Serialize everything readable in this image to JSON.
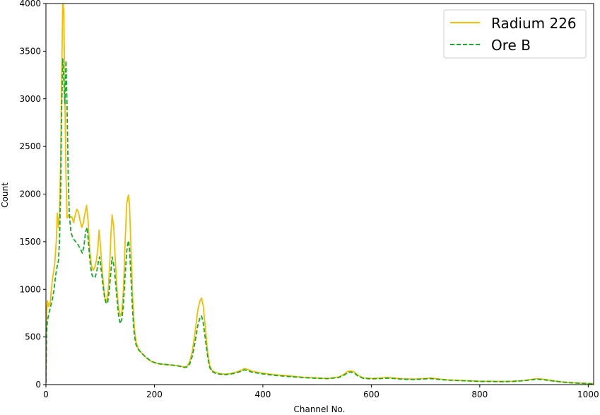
{
  "chart_data": {
    "type": "line",
    "title": "",
    "xlabel": "Channel No.",
    "ylabel": "Count",
    "xlim": [
      0,
      1010
    ],
    "ylim": [
      0,
      4000
    ],
    "xticks": [
      0,
      200,
      400,
      600,
      800,
      1000
    ],
    "yticks": [
      0,
      500,
      1000,
      1500,
      2000,
      2500,
      3000,
      3500,
      4000
    ],
    "grid": false,
    "legend_position": "top-right",
    "series": [
      {
        "name": "Radium 226",
        "color": "#f5be00",
        "style": "solid",
        "points": [
          [
            0,
            20
          ],
          [
            1,
            760
          ],
          [
            3,
            880
          ],
          [
            5,
            820
          ],
          [
            8,
            860
          ],
          [
            10,
            1000
          ],
          [
            13,
            1150
          ],
          [
            16,
            1250
          ],
          [
            19,
            1500
          ],
          [
            21,
            1800
          ],
          [
            23,
            1650
          ],
          [
            25,
            1800
          ],
          [
            27,
            2300
          ],
          [
            29,
            3200
          ],
          [
            31,
            4050
          ],
          [
            33,
            3900
          ],
          [
            35,
            3000
          ],
          [
            37,
            2200
          ],
          [
            39,
            1750
          ],
          [
            42,
            1780
          ],
          [
            45,
            1760
          ],
          [
            48,
            1760
          ],
          [
            51,
            1700
          ],
          [
            54,
            1780
          ],
          [
            57,
            1840
          ],
          [
            60,
            1810
          ],
          [
            63,
            1720
          ],
          [
            66,
            1650
          ],
          [
            69,
            1700
          ],
          [
            72,
            1800
          ],
          [
            75,
            1880
          ],
          [
            78,
            1700
          ],
          [
            81,
            1400
          ],
          [
            84,
            1250
          ],
          [
            87,
            1200
          ],
          [
            90,
            1230
          ],
          [
            93,
            1300
          ],
          [
            96,
            1450
          ],
          [
            98,
            1620
          ],
          [
            100,
            1500
          ],
          [
            103,
            1250
          ],
          [
            106,
            1050
          ],
          [
            109,
            900
          ],
          [
            112,
            870
          ],
          [
            115,
            1000
          ],
          [
            118,
            1300
          ],
          [
            120,
            1600
          ],
          [
            122,
            1780
          ],
          [
            125,
            1650
          ],
          [
            128,
            1300
          ],
          [
            131,
            1000
          ],
          [
            134,
            800
          ],
          [
            137,
            720
          ],
          [
            140,
            760
          ],
          [
            143,
            1000
          ],
          [
            146,
            1500
          ],
          [
            149,
            1900
          ],
          [
            152,
            1990
          ],
          [
            154,
            1900
          ],
          [
            157,
            1400
          ],
          [
            160,
            900
          ],
          [
            163,
            600
          ],
          [
            166,
            450
          ],
          [
            170,
            380
          ],
          [
            175,
            340
          ],
          [
            180,
            310
          ],
          [
            185,
            280
          ],
          [
            190,
            260
          ],
          [
            195,
            240
          ],
          [
            200,
            230
          ],
          [
            210,
            215
          ],
          [
            220,
            210
          ],
          [
            230,
            205
          ],
          [
            240,
            200
          ],
          [
            250,
            190
          ],
          [
            255,
            185
          ],
          [
            260,
            190
          ],
          [
            265,
            240
          ],
          [
            270,
            350
          ],
          [
            275,
            550
          ],
          [
            280,
            780
          ],
          [
            284,
            880
          ],
          [
            287,
            910
          ],
          [
            290,
            830
          ],
          [
            294,
            600
          ],
          [
            298,
            350
          ],
          [
            302,
            200
          ],
          [
            306,
            150
          ],
          [
            312,
            130
          ],
          [
            320,
            115
          ],
          [
            330,
            110
          ],
          [
            340,
            115
          ],
          [
            350,
            130
          ],
          [
            360,
            150
          ],
          [
            366,
            170
          ],
          [
            372,
            160
          ],
          [
            380,
            140
          ],
          [
            400,
            120
          ],
          [
            420,
            105
          ],
          [
            440,
            95
          ],
          [
            460,
            85
          ],
          [
            480,
            75
          ],
          [
            500,
            70
          ],
          [
            520,
            65
          ],
          [
            540,
            80
          ],
          [
            550,
            110
          ],
          [
            557,
            140
          ],
          [
            562,
            145
          ],
          [
            568,
            135
          ],
          [
            575,
            100
          ],
          [
            585,
            70
          ],
          [
            600,
            65
          ],
          [
            620,
            70
          ],
          [
            630,
            75
          ],
          [
            640,
            70
          ],
          [
            660,
            60
          ],
          [
            680,
            58
          ],
          [
            700,
            65
          ],
          [
            710,
            70
          ],
          [
            720,
            62
          ],
          [
            740,
            50
          ],
          [
            760,
            45
          ],
          [
            780,
            40
          ],
          [
            800,
            35
          ],
          [
            820,
            35
          ],
          [
            840,
            33
          ],
          [
            860,
            35
          ],
          [
            880,
            42
          ],
          [
            895,
            55
          ],
          [
            905,
            62
          ],
          [
            915,
            58
          ],
          [
            930,
            45
          ],
          [
            950,
            30
          ],
          [
            970,
            20
          ],
          [
            990,
            15
          ],
          [
            1000,
            12
          ],
          [
            1010,
            10
          ]
        ]
      },
      {
        "name": "Ore B",
        "color": "#17ac2c",
        "style": "dashed",
        "points": [
          [
            0,
            20
          ],
          [
            1,
            550
          ],
          [
            3,
            680
          ],
          [
            6,
            760
          ],
          [
            9,
            830
          ],
          [
            12,
            900
          ],
          [
            15,
            1000
          ],
          [
            18,
            1150
          ],
          [
            21,
            1250
          ],
          [
            23,
            1300
          ],
          [
            25,
            1500
          ],
          [
            27,
            2000
          ],
          [
            29,
            2900
          ],
          [
            31,
            3420
          ],
          [
            33,
            3200
          ],
          [
            35,
            2950
          ],
          [
            37,
            3400
          ],
          [
            39,
            2900
          ],
          [
            41,
            2200
          ],
          [
            43,
            1800
          ],
          [
            46,
            1600
          ],
          [
            49,
            1550
          ],
          [
            52,
            1520
          ],
          [
            55,
            1500
          ],
          [
            58,
            1480
          ],
          [
            61,
            1450
          ],
          [
            64,
            1420
          ],
          [
            67,
            1380
          ],
          [
            70,
            1450
          ],
          [
            73,
            1600
          ],
          [
            76,
            1650
          ],
          [
            79,
            1450
          ],
          [
            82,
            1250
          ],
          [
            85,
            1150
          ],
          [
            88,
            1120
          ],
          [
            91,
            1130
          ],
          [
            94,
            1200
          ],
          [
            97,
            1300
          ],
          [
            99,
            1340
          ],
          [
            102,
            1200
          ],
          [
            105,
            1050
          ],
          [
            108,
            920
          ],
          [
            111,
            850
          ],
          [
            114,
            870
          ],
          [
            117,
            1000
          ],
          [
            120,
            1200
          ],
          [
            122,
            1340
          ],
          [
            125,
            1260
          ],
          [
            128,
            1100
          ],
          [
            131,
            900
          ],
          [
            134,
            720
          ],
          [
            137,
            640
          ],
          [
            140,
            690
          ],
          [
            143,
            850
          ],
          [
            146,
            1150
          ],
          [
            149,
            1400
          ],
          [
            152,
            1510
          ],
          [
            154,
            1450
          ],
          [
            157,
            1100
          ],
          [
            160,
            750
          ],
          [
            163,
            520
          ],
          [
            166,
            420
          ],
          [
            170,
            370
          ],
          [
            175,
            340
          ],
          [
            180,
            310
          ],
          [
            185,
            285
          ],
          [
            190,
            262
          ],
          [
            195,
            245
          ],
          [
            200,
            232
          ],
          [
            210,
            218
          ],
          [
            220,
            212
          ],
          [
            230,
            207
          ],
          [
            240,
            200
          ],
          [
            250,
            188
          ],
          [
            255,
            180
          ],
          [
            260,
            185
          ],
          [
            265,
            215
          ],
          [
            270,
            300
          ],
          [
            275,
            450
          ],
          [
            280,
            620
          ],
          [
            284,
            700
          ],
          [
            287,
            720
          ],
          [
            290,
            650
          ],
          [
            294,
            480
          ],
          [
            298,
            300
          ],
          [
            302,
            180
          ],
          [
            306,
            140
          ],
          [
            312,
            120
          ],
          [
            320,
            110
          ],
          [
            330,
            105
          ],
          [
            340,
            110
          ],
          [
            350,
            122
          ],
          [
            360,
            140
          ],
          [
            366,
            155
          ],
          [
            372,
            148
          ],
          [
            380,
            130
          ],
          [
            400,
            112
          ],
          [
            420,
            98
          ],
          [
            440,
            88
          ],
          [
            460,
            80
          ],
          [
            480,
            72
          ],
          [
            500,
            66
          ],
          [
            520,
            62
          ],
          [
            540,
            75
          ],
          [
            550,
            100
          ],
          [
            557,
            128
          ],
          [
            562,
            132
          ],
          [
            568,
            122
          ],
          [
            575,
            92
          ],
          [
            585,
            66
          ],
          [
            600,
            60
          ],
          [
            620,
            64
          ],
          [
            630,
            68
          ],
          [
            640,
            64
          ],
          [
            660,
            56
          ],
          [
            680,
            54
          ],
          [
            700,
            60
          ],
          [
            710,
            63
          ],
          [
            720,
            57
          ],
          [
            740,
            47
          ],
          [
            760,
            42
          ],
          [
            780,
            38
          ],
          [
            800,
            33
          ],
          [
            820,
            33
          ],
          [
            840,
            31
          ],
          [
            860,
            33
          ],
          [
            880,
            40
          ],
          [
            895,
            50
          ],
          [
            905,
            57
          ],
          [
            915,
            53
          ],
          [
            930,
            42
          ],
          [
            950,
            28
          ],
          [
            970,
            18
          ],
          [
            990,
            13
          ],
          [
            1000,
            11
          ],
          [
            1010,
            9
          ]
        ]
      }
    ]
  }
}
